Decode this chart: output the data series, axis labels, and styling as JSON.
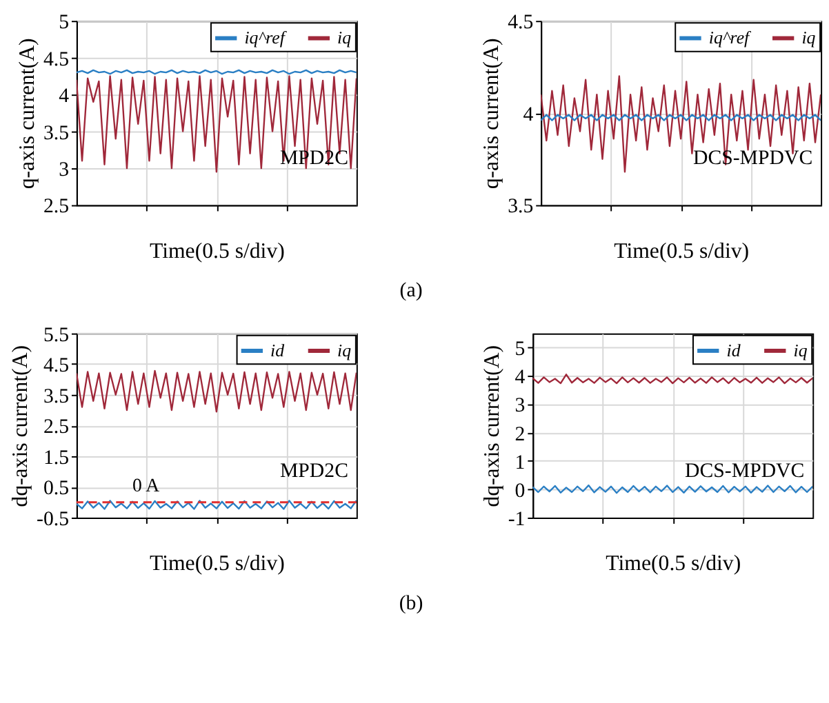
{
  "chart_data": [
    {
      "type": "line",
      "xlabel": "Time(0.5 s/div)",
      "ylabel": "q-axis current(A)",
      "categories": [
        null,
        null,
        null,
        null,
        null,
        null,
        null,
        null,
        null,
        null,
        null,
        null,
        null,
        null,
        null,
        null,
        null,
        null,
        null,
        null,
        null,
        null,
        null,
        null,
        null,
        null,
        null,
        null,
        null,
        null,
        null,
        null,
        null,
        null,
        null,
        null,
        null,
        null,
        null,
        null,
        null,
        null,
        null,
        null,
        null,
        null,
        null,
        null,
        null,
        null,
        null
      ],
      "ylim": [
        2.5,
        5
      ],
      "yticks": [
        2.5,
        3,
        3.5,
        4,
        4.5,
        5
      ],
      "grid": true,
      "legend": "top right",
      "annotations": [
        "MPD2C",
        "(a)"
      ],
      "series": [
        {
          "name": "iq^ref",
          "color": "#2a7fc4",
          "values": [
            4.3,
            4.32,
            4.29,
            4.33,
            4.3,
            4.31,
            4.28,
            4.32,
            4.3,
            4.33,
            4.29,
            4.31,
            4.3,
            4.32,
            4.28,
            4.31,
            4.3,
            4.33,
            4.29,
            4.32,
            4.3,
            4.31,
            4.29,
            4.33,
            4.3,
            4.32,
            4.28,
            4.31,
            4.3,
            4.33,
            4.29,
            4.32,
            4.3,
            4.31,
            4.29,
            4.33,
            4.3,
            4.32,
            4.28,
            4.31,
            4.3,
            4.33,
            4.29,
            4.32,
            4.3,
            4.31,
            4.29,
            4.33,
            4.3,
            4.32,
            4.3
          ]
        },
        {
          "name": "iq",
          "color": "#a0283a",
          "values": [
            4.2,
            3.1,
            4.22,
            3.9,
            4.18,
            3.05,
            4.25,
            3.4,
            4.2,
            3.0,
            4.23,
            3.6,
            4.19,
            3.1,
            4.24,
            3.2,
            4.2,
            3.0,
            4.22,
            3.5,
            4.18,
            3.1,
            4.25,
            3.3,
            4.2,
            2.95,
            4.22,
            3.7,
            4.19,
            3.05,
            4.24,
            3.2,
            4.2,
            3.0,
            4.23,
            3.5,
            4.18,
            3.1,
            4.25,
            3.3,
            4.2,
            3.0,
            4.22,
            3.6,
            4.19,
            3.05,
            4.24,
            3.2,
            4.2,
            3.0,
            4.22
          ]
        }
      ]
    },
    {
      "type": "line",
      "xlabel": "Time(0.5 s/div)",
      "ylabel": "q-axis current(A)",
      "categories": [
        null,
        null,
        null,
        null,
        null,
        null,
        null,
        null,
        null,
        null,
        null,
        null,
        null,
        null,
        null,
        null,
        null,
        null,
        null,
        null,
        null,
        null,
        null,
        null,
        null,
        null,
        null,
        null,
        null,
        null,
        null,
        null,
        null,
        null,
        null,
        null,
        null,
        null,
        null,
        null,
        null,
        null,
        null,
        null,
        null,
        null,
        null,
        null,
        null,
        null,
        null
      ],
      "ylim": [
        3.5,
        4.5
      ],
      "yticks": [
        3.5,
        4,
        4.5
      ],
      "grid": true,
      "legend": "top right",
      "annotations": [
        "DCS-MPDVC"
      ],
      "series": [
        {
          "name": "iq^ref",
          "color": "#2a7fc4",
          "values": [
            3.96,
            3.99,
            3.96,
            3.99,
            3.97,
            3.99,
            3.96,
            3.99,
            3.97,
            3.99,
            3.96,
            3.99,
            3.97,
            3.99,
            3.96,
            3.99,
            3.97,
            3.99,
            3.96,
            3.99,
            3.97,
            3.99,
            3.96,
            3.99,
            3.97,
            3.99,
            3.96,
            3.99,
            3.97,
            3.99,
            3.96,
            3.99,
            3.97,
            3.99,
            3.96,
            3.99,
            3.97,
            3.99,
            3.96,
            3.99,
            3.97,
            3.99,
            3.96,
            3.99,
            3.97,
            3.99,
            3.96,
            3.99,
            3.97,
            3.99,
            3.96
          ]
        },
        {
          "name": "iq",
          "color": "#a0283a",
          "values": [
            4.1,
            3.85,
            4.12,
            3.88,
            4.15,
            3.82,
            4.08,
            3.9,
            4.18,
            3.8,
            4.1,
            3.75,
            4.12,
            3.86,
            4.2,
            3.68,
            4.1,
            3.85,
            4.14,
            3.8,
            4.08,
            3.9,
            4.15,
            3.82,
            4.12,
            3.86,
            4.17,
            3.78,
            4.1,
            3.84,
            4.13,
            3.88,
            4.16,
            3.72,
            4.1,
            3.85,
            4.12,
            3.8,
            4.18,
            3.86,
            4.1,
            3.82,
            4.15,
            3.88,
            4.12,
            3.78,
            4.14,
            3.85,
            4.16,
            3.84,
            4.1
          ]
        }
      ]
    },
    {
      "type": "line",
      "xlabel": "Time(0.5 s/div)",
      "ylabel": "dq-axis current(A)",
      "categories": [
        null,
        null,
        null,
        null,
        null,
        null,
        null,
        null,
        null,
        null,
        null,
        null,
        null,
        null,
        null,
        null,
        null,
        null,
        null,
        null,
        null,
        null,
        null,
        null,
        null,
        null,
        null,
        null,
        null,
        null,
        null,
        null,
        null,
        null,
        null,
        null,
        null,
        null,
        null,
        null,
        null,
        null,
        null,
        null,
        null,
        null,
        null,
        null,
        null,
        null,
        null
      ],
      "ylim": [
        -0.5,
        5.5
      ],
      "yticks": [
        -0.5,
        0.5,
        1.5,
        2.5,
        3.5,
        4.5,
        5.5
      ],
      "grid": true,
      "legend": "top right",
      "annotations": [
        "MPD2C",
        "(b)"
      ],
      "ref_lines": [
        {
          "axis": "y",
          "value": 0,
          "label": "0 A",
          "color": "#e03030",
          "line_style": "dashed"
        }
      ],
      "series": [
        {
          "name": "id",
          "color": "#2a7fc4",
          "values": [
            -0.05,
            -0.2,
            0.03,
            -0.18,
            -0.02,
            -0.22,
            0.05,
            -0.17,
            -0.04,
            -0.2,
            0.02,
            -0.19,
            -0.03,
            -0.21,
            0.04,
            -0.18,
            -0.05,
            -0.2,
            0.03,
            -0.17,
            -0.02,
            -0.22,
            0.05,
            -0.18,
            -0.04,
            -0.2,
            0.02,
            -0.19,
            -0.03,
            -0.21,
            0.04,
            -0.18,
            -0.05,
            -0.2,
            0.03,
            -0.17,
            -0.02,
            -0.22,
            0.05,
            -0.18,
            -0.04,
            -0.2,
            0.02,
            -0.19,
            -0.03,
            -0.21,
            0.04,
            -0.18,
            -0.05,
            -0.2,
            0.06
          ]
        },
        {
          "name": "iq",
          "color": "#a0283a",
          "values": [
            4.2,
            3.1,
            4.25,
            3.3,
            4.2,
            3.05,
            4.22,
            3.5,
            4.18,
            3.0,
            4.25,
            3.2,
            4.2,
            3.1,
            4.28,
            3.4,
            4.2,
            3.0,
            4.22,
            3.3,
            4.18,
            3.1,
            4.25,
            3.2,
            4.2,
            2.95,
            4.22,
            3.5,
            4.19,
            3.05,
            4.24,
            3.2,
            4.2,
            3.0,
            4.23,
            3.4,
            4.18,
            3.1,
            4.25,
            3.3,
            4.2,
            3.0,
            4.22,
            3.5,
            4.19,
            3.05,
            4.24,
            3.2,
            4.2,
            3.0,
            4.22
          ]
        }
      ]
    },
    {
      "type": "line",
      "xlabel": "Time(0.5 s/div)",
      "ylabel": "dq-axis current(A)",
      "categories": [
        null,
        null,
        null,
        null,
        null,
        null,
        null,
        null,
        null,
        null,
        null,
        null,
        null,
        null,
        null,
        null,
        null,
        null,
        null,
        null,
        null,
        null,
        null,
        null,
        null,
        null,
        null,
        null,
        null,
        null,
        null,
        null,
        null,
        null,
        null,
        null,
        null,
        null,
        null,
        null,
        null,
        null,
        null,
        null,
        null,
        null,
        null,
        null,
        null,
        null,
        null
      ],
      "ylim": [
        -1,
        5.5
      ],
      "yticks": [
        -1,
        0,
        1,
        2,
        3,
        4,
        5
      ],
      "grid": true,
      "legend": "top right",
      "annotations": [
        "DCS-MPDVC"
      ],
      "series": [
        {
          "name": "id",
          "color": "#2a7fc4",
          "values": [
            0.08,
            -0.1,
            0.1,
            -0.08,
            0.12,
            -0.12,
            0.06,
            -0.1,
            0.1,
            -0.07,
            0.14,
            -0.11,
            0.08,
            -0.09,
            0.1,
            -0.13,
            0.07,
            -0.1,
            0.12,
            -0.08,
            0.09,
            -0.11,
            0.1,
            -0.07,
            0.13,
            -0.1,
            0.08,
            -0.12,
            0.1,
            -0.09,
            0.11,
            -0.08,
            0.07,
            -0.1,
            0.12,
            -0.11,
            0.09,
            -0.08,
            0.1,
            -0.12,
            0.08,
            -0.09,
            0.13,
            -0.1,
            0.1,
            -0.07,
            0.12,
            -0.11,
            0.09,
            -0.1,
            0.1
          ]
        },
        {
          "name": "iq",
          "color": "#a0283a",
          "values": [
            3.92,
            3.75,
            3.95,
            3.78,
            3.9,
            3.74,
            4.05,
            3.76,
            3.93,
            3.77,
            3.9,
            3.75,
            3.94,
            3.78,
            3.91,
            3.74,
            3.95,
            3.77,
            3.92,
            3.76,
            3.93,
            3.75,
            3.9,
            3.78,
            3.95,
            3.74,
            3.92,
            3.77,
            3.94,
            3.76,
            3.91,
            3.75,
            3.95,
            3.78,
            3.92,
            3.74,
            3.93,
            3.77,
            3.9,
            3.76,
            3.94,
            3.75,
            3.92,
            3.78,
            3.95,
            3.74,
            3.91,
            3.77,
            3.93,
            3.76,
            3.92
          ]
        }
      ]
    }
  ]
}
